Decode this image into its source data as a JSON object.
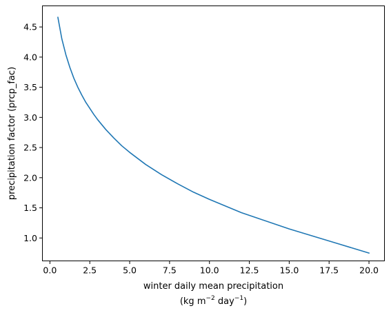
{
  "chart_data": {
    "type": "line",
    "title": "",
    "xlabel_line1": "winter daily mean precipitation",
    "xlabel_line2_prefix": "(kg m",
    "xlabel_line2_sup1": "−2",
    "xlabel_line2_mid": " day",
    "xlabel_line2_sup2": "−1",
    "xlabel_line2_suffix": ")",
    "ylabel": "precipitation factor (prcp_fac)",
    "xlim": [
      -0.47,
      20.97
    ],
    "ylim": [
      0.62,
      4.85
    ],
    "xticks": [
      0.0,
      2.5,
      5.0,
      7.5,
      10.0,
      12.5,
      15.0,
      17.5,
      20.0
    ],
    "xtick_labels": [
      "0.0",
      "2.5",
      "5.0",
      "7.5",
      "10.0",
      "12.5",
      "15.0",
      "17.5",
      "20.0"
    ],
    "yticks": [
      1.0,
      1.5,
      2.0,
      2.5,
      3.0,
      3.5,
      4.0,
      4.5
    ],
    "ytick_labels": [
      "1.0",
      "1.5",
      "2.0",
      "2.5",
      "3.0",
      "3.5",
      "4.0",
      "4.5"
    ],
    "grid": false,
    "series": [
      {
        "color": "#1f77b4",
        "x": [
          0.5,
          0.75,
          1.0,
          1.25,
          1.5,
          1.75,
          2.0,
          2.25,
          2.5,
          2.75,
          3.0,
          3.5,
          4.0,
          4.5,
          5.0,
          6.0,
          7.0,
          8.0,
          9.0,
          10.0,
          11.0,
          12.0,
          13.0,
          14.0,
          15.0,
          16.0,
          17.0,
          18.0,
          19.0,
          20.0
        ],
        "y": [
          4.66,
          4.3,
          4.04,
          3.83,
          3.65,
          3.5,
          3.37,
          3.25,
          3.15,
          3.05,
          2.96,
          2.8,
          2.66,
          2.53,
          2.42,
          2.22,
          2.05,
          1.9,
          1.76,
          1.64,
          1.53,
          1.42,
          1.33,
          1.24,
          1.15,
          1.07,
          0.99,
          0.91,
          0.83,
          0.75
        ]
      }
    ]
  }
}
